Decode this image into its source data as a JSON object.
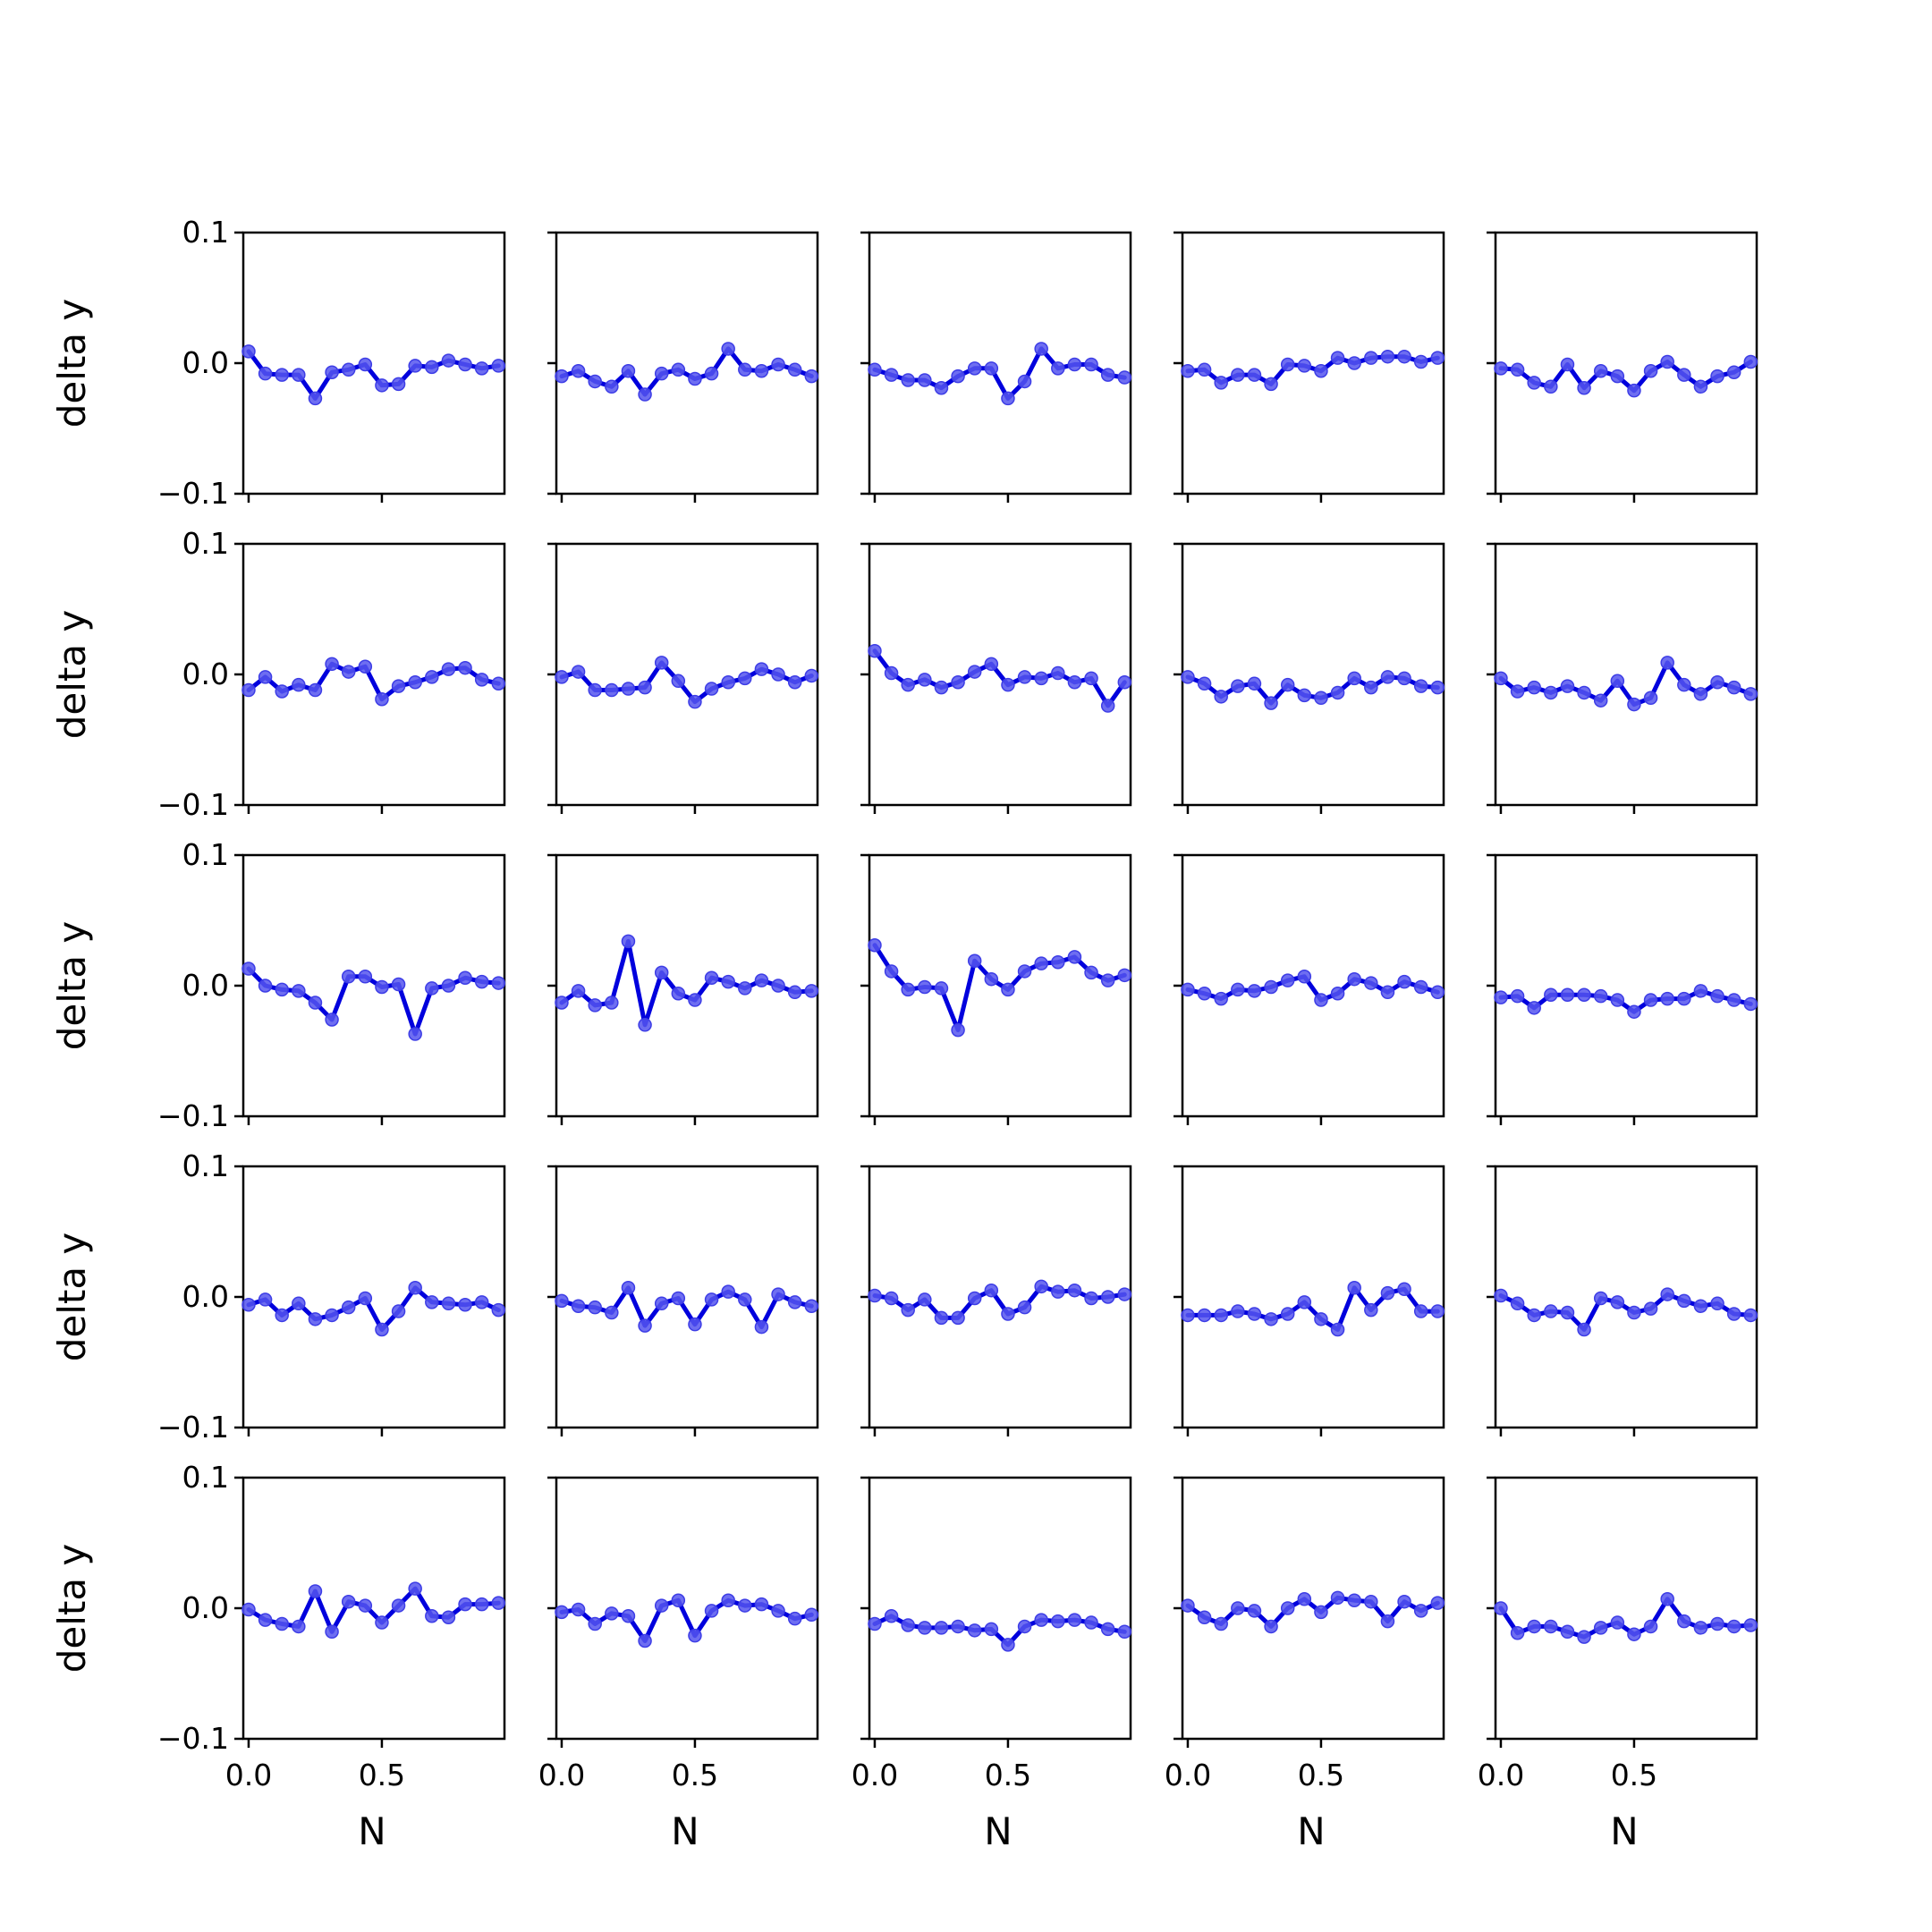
{
  "chart_data": {
    "type": "line",
    "layout": "grid",
    "rows": 5,
    "cols": 5,
    "xlabel": "N",
    "ylabel": "delta y",
    "xlim": [
      -0.02,
      0.96
    ],
    "ylim": [
      -0.1,
      0.1
    ],
    "xticks": [
      0.0,
      0.5
    ],
    "xtick_labels": [
      "0.0",
      "0.5"
    ],
    "yticks": [
      0.1,
      0.0,
      -0.1
    ],
    "ytick_labels": [
      "0.1",
      "0.0",
      "−0.1"
    ],
    "x": [
      0.0,
      0.0625,
      0.125,
      0.1875,
      0.25,
      0.3125,
      0.375,
      0.4375,
      0.5,
      0.5625,
      0.625,
      0.6875,
      0.75,
      0.8125,
      0.875,
      0.9375
    ],
    "line_color": "#0000dd",
    "marker_color": "#5555ee",
    "grid": false,
    "panels": [
      {
        "values": [
          0.009,
          -0.008,
          -0.009,
          -0.009,
          -0.027,
          -0.007,
          -0.005,
          -0.001,
          -0.017,
          -0.016,
          -0.002,
          -0.003,
          0.002,
          -0.001,
          -0.004,
          -0.002
        ]
      },
      {
        "values": [
          -0.01,
          -0.006,
          -0.014,
          -0.018,
          -0.006,
          -0.024,
          -0.008,
          -0.005,
          -0.012,
          -0.008,
          0.011,
          -0.005,
          -0.006,
          -0.001,
          -0.005,
          -0.01
        ]
      },
      {
        "values": [
          -0.005,
          -0.009,
          -0.013,
          -0.013,
          -0.019,
          -0.01,
          -0.004,
          -0.004,
          -0.027,
          -0.014,
          0.011,
          -0.004,
          -0.001,
          -0.001,
          -0.009,
          -0.011
        ]
      },
      {
        "values": [
          -0.006,
          -0.005,
          -0.015,
          -0.009,
          -0.009,
          -0.016,
          -0.001,
          -0.002,
          -0.006,
          0.004,
          0.0,
          0.004,
          0.005,
          0.005,
          0.001,
          0.004
        ]
      },
      {
        "values": [
          -0.004,
          -0.005,
          -0.015,
          -0.018,
          -0.001,
          -0.019,
          -0.006,
          -0.01,
          -0.021,
          -0.006,
          0.001,
          -0.009,
          -0.018,
          -0.01,
          -0.007,
          0.001
        ]
      },
      {
        "values": [
          -0.012,
          -0.002,
          -0.013,
          -0.008,
          -0.012,
          0.008,
          0.002,
          0.006,
          -0.019,
          -0.009,
          -0.006,
          -0.002,
          0.004,
          0.005,
          -0.004,
          -0.007
        ]
      },
      {
        "values": [
          -0.002,
          0.002,
          -0.012,
          -0.012,
          -0.011,
          -0.01,
          0.009,
          -0.005,
          -0.021,
          -0.011,
          -0.006,
          -0.003,
          0.004,
          0.0,
          -0.006,
          -0.001
        ]
      },
      {
        "values": [
          0.018,
          0.001,
          -0.008,
          -0.004,
          -0.01,
          -0.006,
          0.002,
          0.008,
          -0.008,
          -0.002,
          -0.003,
          0.001,
          -0.006,
          -0.003,
          -0.024,
          -0.006
        ]
      },
      {
        "values": [
          -0.002,
          -0.007,
          -0.017,
          -0.009,
          -0.007,
          -0.022,
          -0.008,
          -0.016,
          -0.018,
          -0.014,
          -0.003,
          -0.01,
          -0.002,
          -0.003,
          -0.009,
          -0.01
        ]
      },
      {
        "values": [
          -0.003,
          -0.013,
          -0.01,
          -0.014,
          -0.009,
          -0.014,
          -0.02,
          -0.005,
          -0.023,
          -0.018,
          0.009,
          -0.008,
          -0.015,
          -0.006,
          -0.01,
          -0.015
        ]
      },
      {
        "values": [
          0.013,
          0.0,
          -0.003,
          -0.004,
          -0.013,
          -0.026,
          0.007,
          0.007,
          -0.001,
          0.001,
          -0.037,
          -0.002,
          0.0,
          0.006,
          0.003,
          0.002
        ]
      },
      {
        "values": [
          -0.013,
          -0.004,
          -0.015,
          -0.013,
          0.034,
          -0.03,
          0.01,
          -0.006,
          -0.011,
          0.006,
          0.003,
          -0.002,
          0.004,
          0.0,
          -0.005,
          -0.004
        ]
      },
      {
        "values": [
          0.031,
          0.011,
          -0.003,
          -0.001,
          -0.002,
          -0.034,
          0.019,
          0.005,
          -0.003,
          0.011,
          0.017,
          0.018,
          0.022,
          0.01,
          0.004,
          0.008
        ]
      },
      {
        "values": [
          -0.003,
          -0.006,
          -0.01,
          -0.003,
          -0.004,
          -0.001,
          0.004,
          0.007,
          -0.011,
          -0.006,
          0.005,
          0.002,
          -0.005,
          0.003,
          -0.001,
          -0.005
        ]
      },
      {
        "values": [
          -0.009,
          -0.008,
          -0.017,
          -0.007,
          -0.007,
          -0.007,
          -0.008,
          -0.011,
          -0.02,
          -0.011,
          -0.01,
          -0.01,
          -0.004,
          -0.008,
          -0.011,
          -0.014
        ]
      },
      {
        "values": [
          -0.006,
          -0.002,
          -0.014,
          -0.005,
          -0.017,
          -0.014,
          -0.008,
          -0.001,
          -0.025,
          -0.011,
          0.007,
          -0.004,
          -0.005,
          -0.006,
          -0.004,
          -0.01
        ]
      },
      {
        "values": [
          -0.003,
          -0.007,
          -0.008,
          -0.012,
          0.007,
          -0.022,
          -0.005,
          -0.001,
          -0.021,
          -0.002,
          0.004,
          -0.002,
          -0.023,
          0.002,
          -0.004,
          -0.007
        ]
      },
      {
        "values": [
          0.001,
          -0.001,
          -0.01,
          -0.002,
          -0.016,
          -0.016,
          -0.001,
          0.005,
          -0.013,
          -0.008,
          0.008,
          0.004,
          0.005,
          -0.001,
          0.0,
          0.002
        ]
      },
      {
        "values": [
          -0.014,
          -0.014,
          -0.014,
          -0.011,
          -0.013,
          -0.017,
          -0.013,
          -0.004,
          -0.017,
          -0.025,
          0.007,
          -0.01,
          0.003,
          0.006,
          -0.011,
          -0.011
        ]
      },
      {
        "values": [
          0.001,
          -0.005,
          -0.014,
          -0.011,
          -0.012,
          -0.025,
          -0.001,
          -0.004,
          -0.012,
          -0.009,
          0.002,
          -0.003,
          -0.007,
          -0.005,
          -0.013,
          -0.014
        ]
      },
      {
        "values": [
          -0.001,
          -0.009,
          -0.012,
          -0.014,
          0.013,
          -0.018,
          0.005,
          0.002,
          -0.011,
          0.002,
          0.015,
          -0.006,
          -0.007,
          0.003,
          0.003,
          0.004
        ]
      },
      {
        "values": [
          -0.003,
          -0.001,
          -0.012,
          -0.004,
          -0.006,
          -0.025,
          0.002,
          0.006,
          -0.021,
          -0.002,
          0.006,
          0.002,
          0.003,
          -0.002,
          -0.008,
          -0.005
        ]
      },
      {
        "values": [
          -0.012,
          -0.006,
          -0.013,
          -0.015,
          -0.015,
          -0.014,
          -0.017,
          -0.016,
          -0.028,
          -0.014,
          -0.009,
          -0.01,
          -0.009,
          -0.011,
          -0.016,
          -0.018
        ]
      },
      {
        "values": [
          0.002,
          -0.007,
          -0.012,
          0.0,
          -0.002,
          -0.014,
          0.0,
          0.007,
          -0.003,
          0.008,
          0.006,
          0.005,
          -0.01,
          0.005,
          -0.002,
          0.004
        ]
      },
      {
        "values": [
          0.0,
          -0.019,
          -0.014,
          -0.014,
          -0.018,
          -0.022,
          -0.015,
          -0.011,
          -0.02,
          -0.014,
          0.007,
          -0.01,
          -0.015,
          -0.012,
          -0.014,
          -0.013
        ]
      }
    ]
  }
}
